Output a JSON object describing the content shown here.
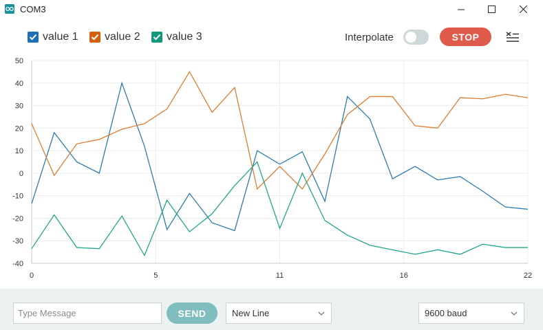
{
  "window": {
    "title": "COM3"
  },
  "toolbar": {
    "series": [
      {
        "label": "value 1",
        "color": "#1f6fb2",
        "checked": true
      },
      {
        "label": "value 2",
        "color": "#d35f10",
        "checked": true
      },
      {
        "label": "value 3",
        "color": "#13997a",
        "checked": true
      }
    ],
    "interpolate_label": "Interpolate",
    "interpolate_on": false,
    "stop_label": "STOP",
    "stop_color": "#e05a4c",
    "clear_icon": "clear-output-icon"
  },
  "chart_data": {
    "type": "line",
    "x": [
      0,
      1,
      2,
      3,
      4,
      5,
      6,
      7,
      8,
      9,
      10,
      11,
      12,
      13,
      14,
      15,
      16,
      17,
      18,
      19,
      20,
      21,
      22
    ],
    "xticks": [
      "0",
      "5",
      "11",
      "16",
      "22"
    ],
    "xtick_values": [
      0,
      5.5,
      11,
      16.5,
      22
    ],
    "yticks": [
      "50",
      "40",
      "30",
      "20",
      "10",
      "0",
      "-10",
      "-20",
      "-30",
      "-40"
    ],
    "ylim": [
      -40,
      50
    ],
    "xlim": [
      0,
      22
    ],
    "grid": true,
    "series": [
      {
        "name": "value 1",
        "color": "#2b7bb0",
        "values": [
          -13.5,
          18,
          5,
          0,
          40,
          12,
          -25,
          -9,
          -22,
          -25.5,
          10,
          4,
          9.5,
          -12.5,
          34,
          24,
          -2.5,
          3,
          -3,
          -1.5,
          -8,
          -15,
          -16
        ]
      },
      {
        "name": "value 2",
        "color": "#e07b2f",
        "values": [
          22,
          -1,
          13,
          15,
          19.5,
          22,
          28.5,
          45,
          27,
          38,
          -7,
          3,
          -7,
          8.5,
          26,
          34,
          34,
          21,
          20,
          33.5,
          33,
          35,
          33.5
        ]
      },
      {
        "name": "value 3",
        "color": "#1fa68a",
        "values": [
          -33.5,
          -18.5,
          -33,
          -33.5,
          -19,
          -36.5,
          -12,
          -26,
          -18,
          -5.5,
          5,
          -24.5,
          0,
          -21,
          -27.5,
          -32,
          -34,
          -36,
          -34,
          -36,
          -31.5,
          -33,
          -33
        ]
      }
    ]
  },
  "bottom": {
    "message_placeholder": "Type Message",
    "send_label": "SEND",
    "line_ending": "New Line",
    "baud": "9600 baud"
  }
}
